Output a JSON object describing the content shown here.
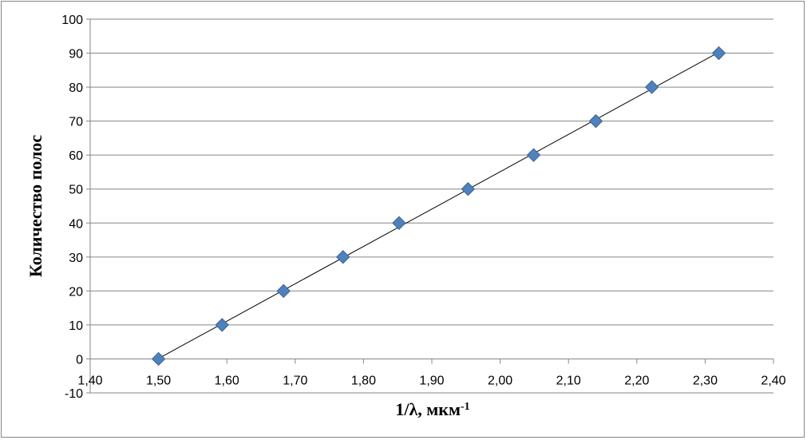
{
  "chart_data": {
    "type": "scatter",
    "xlabel": "1/λ, мкм",
    "xlabel_sup": "-1",
    "ylabel": "Количество полос",
    "xlim": [
      1.4,
      2.4
    ],
    "ylim": [
      -10,
      100
    ],
    "x_ticks": [
      1.4,
      1.5,
      1.6,
      1.7,
      1.8,
      1.9,
      2.0,
      2.1,
      2.2,
      2.3,
      2.4
    ],
    "x_tick_labels": [
      "1,40",
      "1,50",
      "1,60",
      "1,70",
      "1,80",
      "1,90",
      "2,00",
      "2,10",
      "2,20",
      "2,30",
      "2,40"
    ],
    "y_ticks": [
      -10,
      0,
      10,
      20,
      30,
      40,
      50,
      60,
      70,
      80,
      90,
      100
    ],
    "y_tick_labels": [
      "-10",
      "0",
      "10",
      "20",
      "30",
      "40",
      "50",
      "60",
      "70",
      "80",
      "90",
      "100"
    ],
    "grid": {
      "horizontal": true,
      "vertical": false
    },
    "legend": "none",
    "marker": "diamond",
    "trendline": "linear",
    "series": [
      {
        "x": [
          1.5,
          1.593,
          1.683,
          1.77,
          1.852,
          1.953,
          2.049,
          2.14,
          2.222,
          2.32
        ],
        "y": [
          0,
          10,
          20,
          30,
          40,
          50,
          60,
          70,
          80,
          90
        ]
      }
    ],
    "colors": {
      "marker_fill": "#4f81bd",
      "marker_stroke": "#3a6494",
      "trendline": "#000000",
      "grid": "#868686",
      "axis": "#868686"
    }
  }
}
